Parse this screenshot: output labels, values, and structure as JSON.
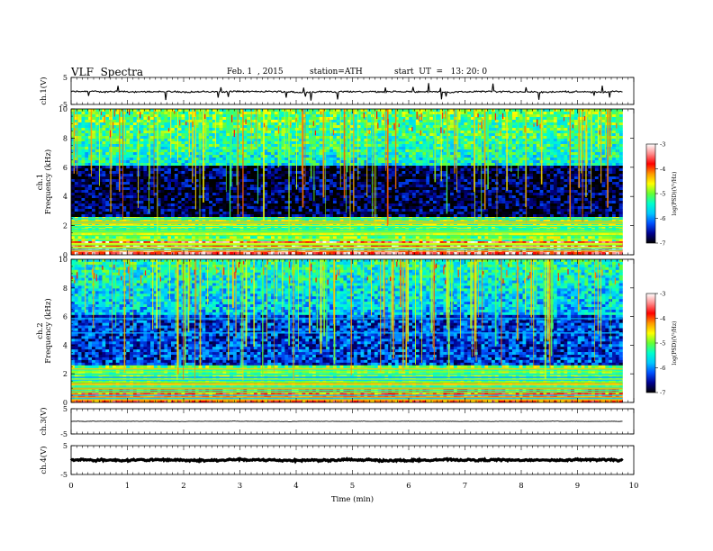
{
  "header": {
    "title": "VLF  Spectra",
    "date": "Feb. 1  , 2015",
    "station": "station=ATH",
    "start": "start  UT  =   13: 20: 0"
  },
  "colorbar": {
    "label": "log(PSD)(V²/Hz)",
    "ticks": [
      "-3",
      "-4",
      "-5",
      "-6",
      "-7"
    ],
    "stops": [
      "#ffffff",
      "#ff8a8a",
      "#ff0000",
      "#ff9900",
      "#ffff00",
      "#66ff33",
      "#00ffcc",
      "#00c8ff",
      "#0050ff",
      "#000090",
      "#000000"
    ]
  },
  "chart_data": [
    {
      "type": "line",
      "panel": "ch1-voltage",
      "ylabel": "ch.1(V)",
      "yticks": [
        "5",
        "-5"
      ],
      "ylim": [
        -5,
        5
      ],
      "xlim": [
        0,
        10
      ],
      "x_range_data": [
        0,
        9.8
      ],
      "baseline_value": -0.3,
      "noise_amplitude": 0.5,
      "line_color": "#000000"
    },
    {
      "type": "heatmap",
      "panel": "ch1-spectrogram",
      "ylabel": "ch.1\nFrequency  (kHz)",
      "yticks": [
        "0",
        "2",
        "4",
        "6",
        "8",
        "10"
      ],
      "ylim": [
        0,
        10
      ],
      "xlim": [
        0,
        10
      ],
      "x_range_data": [
        0,
        9.8
      ],
      "value_scale": "log(PSD)(V²/Hz)",
      "value_range": [
        -7,
        -3
      ],
      "high_band_log_psd": -5.5,
      "mid_band_log_psd": -6.8,
      "low_band_log_psd": -5.0,
      "lowest_band_log_psd": -3.5
    },
    {
      "type": "heatmap",
      "panel": "ch2-spectrogram",
      "ylabel": "ch.2\nFrequency  (kHz)",
      "yticks": [
        "0",
        "2",
        "4",
        "6",
        "8",
        "10"
      ],
      "ylim": [
        0,
        10
      ],
      "xlim": [
        0,
        10
      ],
      "x_range_data": [
        0,
        9.8
      ],
      "value_scale": "log(PSD)(V²/Hz)",
      "value_range": [
        -7,
        -3
      ],
      "high_band_log_psd": -5.8,
      "mid_band_log_psd": -6.3,
      "low_band_log_psd": -5.0,
      "lowest_band_log_psd": -4.0,
      "line_at_kHz": [
        4.9,
        5.9,
        1.8
      ]
    },
    {
      "type": "line",
      "panel": "ch3-voltage",
      "ylabel": "ch.3(V)",
      "yticks": [
        "5",
        "-5"
      ],
      "ylim": [
        -5,
        5
      ],
      "xlim": [
        0,
        10
      ],
      "x_range_data": [
        0,
        9.8
      ],
      "baseline_value": 0.0,
      "noise_amplitude": 0.15,
      "line_color": "#000000"
    },
    {
      "type": "line",
      "panel": "ch4-voltage",
      "ylabel": "ch.4(V)",
      "yticks": [
        "5",
        "-5"
      ],
      "ylim": [
        -5,
        5
      ],
      "xlim": [
        0,
        10
      ],
      "x_range_data": [
        0,
        9.8
      ],
      "baseline_value": 0.0,
      "noise_amplitude": 0.5,
      "line_color": "#000000",
      "xlabel": "Time  (min)",
      "xticks": [
        "0",
        "1",
        "2",
        "3",
        "4",
        "5",
        "6",
        "7",
        "8",
        "9",
        "10"
      ]
    }
  ]
}
